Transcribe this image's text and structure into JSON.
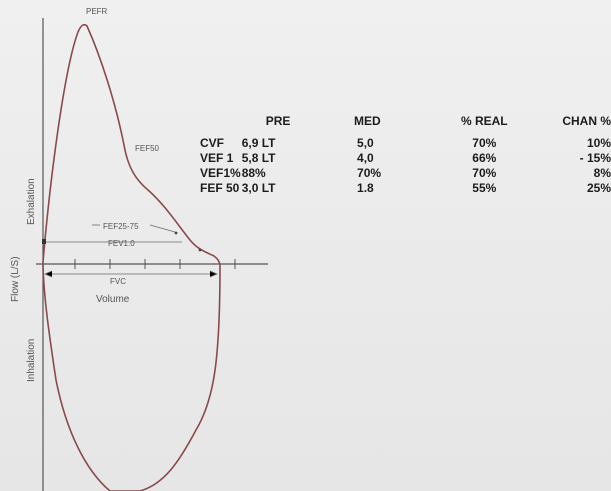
{
  "chart_data": {
    "type": "line",
    "title": "",
    "ylabel": "Flow (L/S)",
    "xlabel": "Volume",
    "regions": {
      "upper": "Exhalation",
      "lower": "Inhalation"
    },
    "annotations": [
      "PEFR",
      "FEF50",
      "FEF25-75",
      "FEV1.0",
      "FVC"
    ],
    "curve_color": "#8a4a4a"
  },
  "results_table": {
    "headers": [
      "",
      "PRE",
      "MED",
      "% REAL",
      "CHAN %"
    ],
    "rows": [
      [
        "CVF",
        "6,9  LT",
        "5,0",
        "70%",
        "10%"
      ],
      [
        "VEF 1",
        "5,8  LT",
        "4,0",
        "66%",
        "- 15%"
      ],
      [
        "VEF1%",
        "88%",
        "70%",
        "70%",
        "8%"
      ],
      [
        "FEF 50",
        "3,0 LT",
        "1.8",
        "55%",
        "25%"
      ]
    ]
  }
}
